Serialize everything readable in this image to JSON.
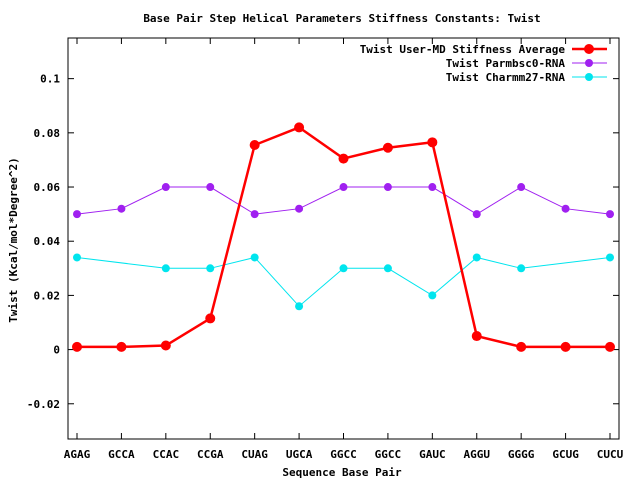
{
  "chart_data": {
    "type": "line",
    "title": "Base Pair Step Helical Parameters Stiffness Constants: Twist",
    "xlabel": "Sequence Base Pair",
    "ylabel": "Twist (Kcal/mol*Degree^2)",
    "categories": [
      "AGAG",
      "GCCA",
      "CCAC",
      "CCGA",
      "CUAG",
      "UGCA",
      "GGCC",
      "GGCC",
      "GAUC",
      "AGGU",
      "GGGG",
      "GCUG",
      "CUCU"
    ],
    "ylim": [
      -0.033,
      0.115
    ],
    "yticks": [
      -0.02,
      0,
      0.02,
      0.04,
      0.06,
      0.08,
      0.1
    ],
    "ytick_labels": [
      "-0.02",
      "0",
      "0.02",
      "0.04",
      "0.06",
      "0.08",
      "0.1"
    ],
    "grid": false,
    "legend_position": "top-right",
    "series": [
      {
        "name": "Twist User-MD Stiffness Average",
        "color": "#ff0000",
        "marker": "circle-large",
        "values": [
          0.001,
          0.001,
          0.0015,
          0.0115,
          0.0755,
          0.082,
          0.0705,
          0.0745,
          0.0765,
          0.005,
          0.001,
          0.001,
          0.001
        ]
      },
      {
        "name": "Twist Parmbsc0-RNA",
        "color": "#a020f0",
        "marker": "circle",
        "values": [
          0.05,
          0.052,
          0.06,
          0.06,
          0.05,
          0.052,
          0.06,
          0.06,
          0.06,
          0.05,
          0.06,
          0.052,
          0.05
        ]
      },
      {
        "name": "Twist Charmm27-RNA",
        "color": "#00e5ee",
        "marker": "circle",
        "values": [
          0.034,
          null,
          0.03,
          0.03,
          0.034,
          0.016,
          0.03,
          0.03,
          0.02,
          0.034,
          0.03,
          null,
          0.034
        ]
      }
    ]
  }
}
